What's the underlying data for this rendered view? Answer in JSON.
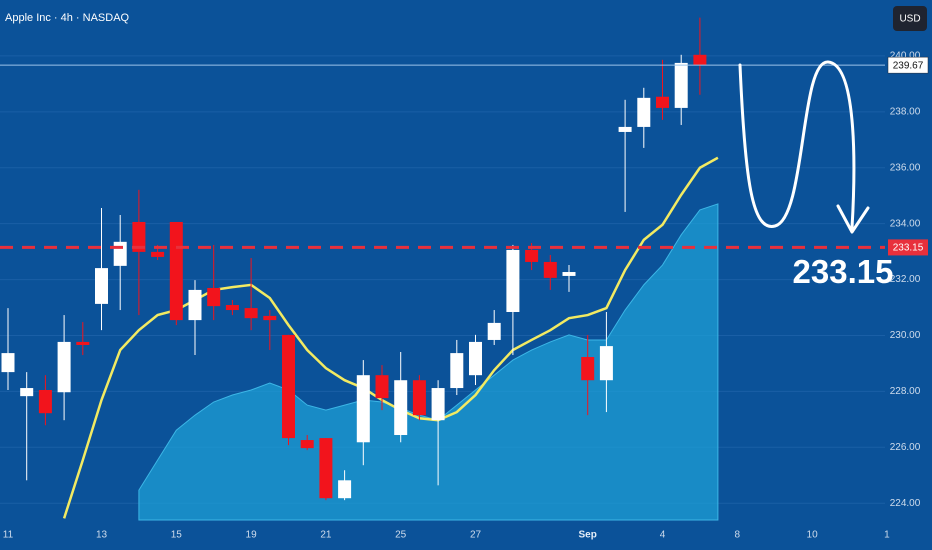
{
  "chart_data": {
    "type": "candlestick",
    "title": "Apple Inc · 4h · NASDAQ",
    "currency": "USD",
    "categories": [
      "11",
      null,
      null,
      null,
      null,
      "13",
      null,
      null,
      null,
      "15",
      null,
      null,
      null,
      "19",
      null,
      null,
      null,
      "21",
      null,
      null,
      null,
      "25",
      null,
      null,
      null,
      "27",
      null,
      null,
      null,
      null,
      null,
      "Sep",
      null,
      null,
      null,
      "4",
      null,
      null,
      null,
      "8",
      null,
      null,
      null,
      "10",
      null,
      null,
      null,
      "1"
    ],
    "open": [
      228.69,
      227.83,
      228.05,
      227.97,
      229.77,
      231.13,
      232.49,
      234.06,
      232.99,
      234.06,
      230.55,
      231.7,
      231.09,
      230.98,
      230.7,
      230.02,
      226.26,
      226.33,
      224.18,
      226.18,
      228.58,
      226.44,
      228.4,
      226.97,
      228.12,
      228.58,
      229.84,
      230.84,
      233.06,
      232.63,
      232.13,
      229.23,
      228.4,
      237.28,
      237.46,
      238.54,
      238.14,
      240.04,
      null,
      null,
      null,
      null,
      null,
      null,
      null,
      null,
      null,
      null
    ],
    "high": [
      230.98,
      228.69,
      228.58,
      230.73,
      230.48,
      234.56,
      234.31,
      235.21,
      233.24,
      234.06,
      231.98,
      233.24,
      231.27,
      232.77,
      230.91,
      230.02,
      226.44,
      226.33,
      225.18,
      229.12,
      228.94,
      229.41,
      228.58,
      228.4,
      229.84,
      230.02,
      230.91,
      233.24,
      233.31,
      232.88,
      232.52,
      230.02,
      230.84,
      238.43,
      238.86,
      239.86,
      240.04,
      241.37,
      null,
      null,
      null,
      null,
      null,
      null,
      null,
      null,
      null,
      null
    ],
    "low": [
      228.05,
      224.82,
      226.79,
      226.97,
      229.3,
      230.19,
      230.91,
      230.73,
      232.7,
      230.37,
      229.3,
      230.55,
      230.73,
      230.19,
      229.48,
      226.08,
      225.9,
      224.11,
      224.11,
      225.36,
      227.33,
      226.18,
      226.97,
      224.64,
      227.87,
      228.23,
      229.66,
      229.3,
      232.34,
      231.63,
      231.56,
      227.15,
      227.26,
      234.42,
      236.71,
      237.71,
      237.53,
      238.61,
      null,
      null,
      null,
      null,
      null,
      null,
      null,
      null,
      null,
      null
    ],
    "close": [
      229.37,
      228.12,
      227.22,
      229.77,
      229.66,
      232.41,
      233.35,
      232.99,
      232.81,
      230.55,
      231.63,
      231.05,
      230.91,
      230.62,
      230.55,
      226.33,
      225.97,
      224.18,
      224.82,
      228.58,
      227.76,
      228.4,
      227.15,
      228.12,
      229.37,
      229.77,
      230.45,
      233.06,
      232.63,
      232.06,
      232.27,
      228.4,
      229.62,
      237.46,
      238.5,
      238.14,
      239.75,
      239.68,
      null,
      null,
      null,
      null,
      null,
      null,
      null,
      null,
      null,
      null
    ],
    "up_color": "#ffffff",
    "down_color": "#f2141c",
    "overlays": [
      {
        "type": "area",
        "color": "#1e9fd6",
        "values": [
          null,
          null,
          null,
          null,
          null,
          null,
          null,
          224.47,
          225.54,
          226.61,
          227.15,
          227.62,
          227.87,
          228.05,
          228.3,
          228.05,
          227.51,
          227.33,
          227.51,
          227.69,
          227.62,
          227.4,
          227.15,
          226.97,
          227.51,
          228.05,
          228.58,
          229.12,
          229.48,
          229.77,
          230.02,
          229.84,
          229.84,
          230.91,
          231.81,
          232.52,
          233.6,
          234.49,
          null,
          null,
          null,
          null,
          null,
          null,
          null,
          null,
          null,
          null
        ]
      },
      {
        "type": "line",
        "color": "#f2ea62",
        "values": [
          null,
          null,
          null,
          223.46,
          225.54,
          227.69,
          229.48,
          230.19,
          230.73,
          230.91,
          231.27,
          231.63,
          231.73,
          231.81,
          231.34,
          230.37,
          229.48,
          228.83,
          228.4,
          228.12,
          227.69,
          227.33,
          227.04,
          226.97,
          227.26,
          227.87,
          228.76,
          229.48,
          229.84,
          230.19,
          230.62,
          230.73,
          230.98,
          232.34,
          233.42,
          233.96,
          235.03,
          236.0,
          null,
          null,
          null,
          null,
          null,
          null,
          null,
          null,
          null,
          null
        ]
      }
    ],
    "ylim": [
      223.4,
      242.0
    ],
    "yticks": [
      {
        "value": 224,
        "label": "224.00"
      },
      {
        "value": 226,
        "label": "226.00"
      },
      {
        "value": 228,
        "label": "228.00"
      },
      {
        "value": 230,
        "label": "230.00"
      },
      {
        "value": 232,
        "label": "232.00"
      },
      {
        "value": 234,
        "label": "234.00"
      },
      {
        "value": 236,
        "label": "236.00"
      },
      {
        "value": 238,
        "label": "238.00"
      },
      {
        "value": 240,
        "label": "240.00"
      }
    ],
    "grid": true,
    "current_price": 239.67,
    "level": 233.15,
    "level_color": "#e8303c"
  }
}
